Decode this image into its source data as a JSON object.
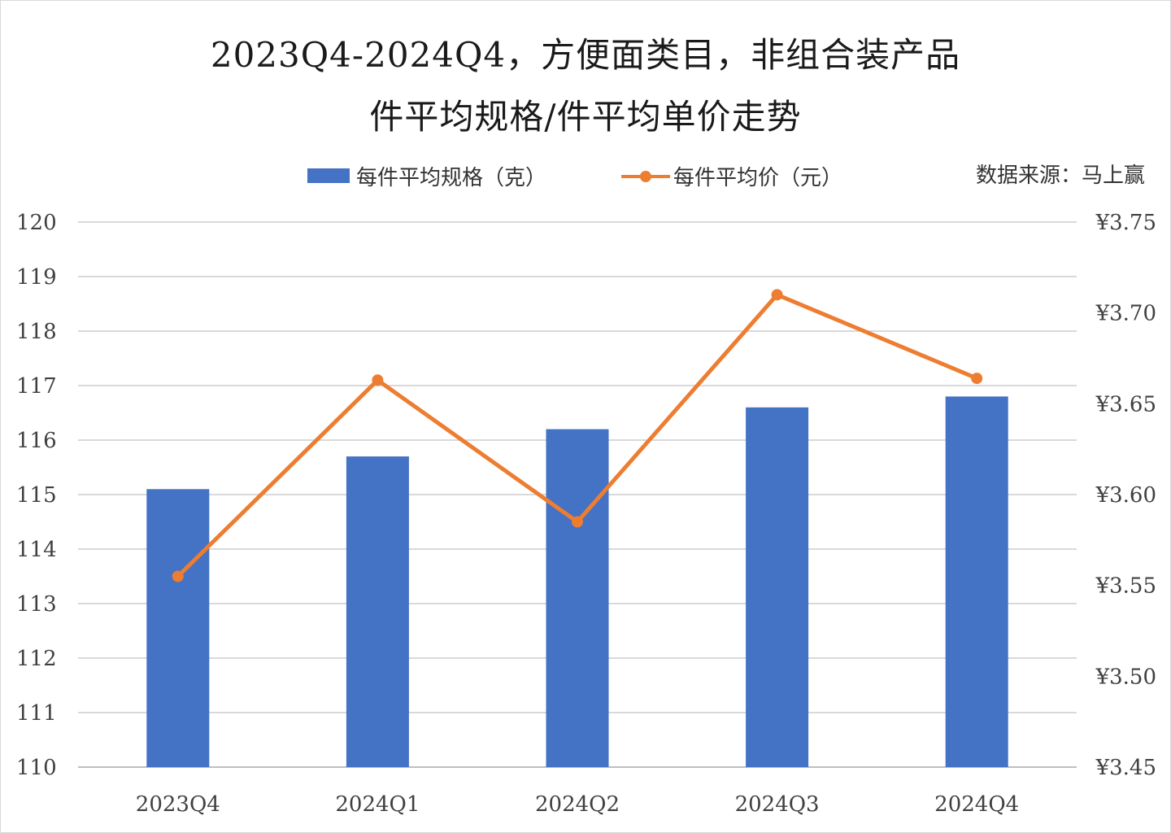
{
  "chart_data": {
    "type": "bar",
    "title": "2023Q4-2024Q4，方便面类目，非组合装产品",
    "subtitle": "件平均规格/件平均单价走势",
    "source": "数据来源：马上赢",
    "categories": [
      "2023Q4",
      "2024Q1",
      "2024Q2",
      "2024Q3",
      "2024Q4"
    ],
    "series": [
      {
        "name": "每件平均规格（克）",
        "type": "bar",
        "axis": "left",
        "color": "#4472C4",
        "values": [
          115.1,
          115.7,
          116.2,
          116.6,
          116.8
        ]
      },
      {
        "name": "每件平均价（元）",
        "type": "line",
        "axis": "right",
        "color": "#ED7D31",
        "values": [
          3.555,
          3.663,
          3.585,
          3.71,
          3.664
        ]
      }
    ],
    "y_left": {
      "min": 110,
      "max": 120,
      "ticks": [
        "110",
        "111",
        "112",
        "113",
        "114",
        "115",
        "116",
        "117",
        "118",
        "119",
        "120"
      ]
    },
    "y_right": {
      "min": 3.45,
      "max": 3.75,
      "ticks": [
        "¥3.45",
        "¥3.50",
        "¥3.55",
        "¥3.60",
        "¥3.65",
        "¥3.70",
        "¥3.75"
      ]
    },
    "grid": true,
    "legend_position": "top"
  }
}
